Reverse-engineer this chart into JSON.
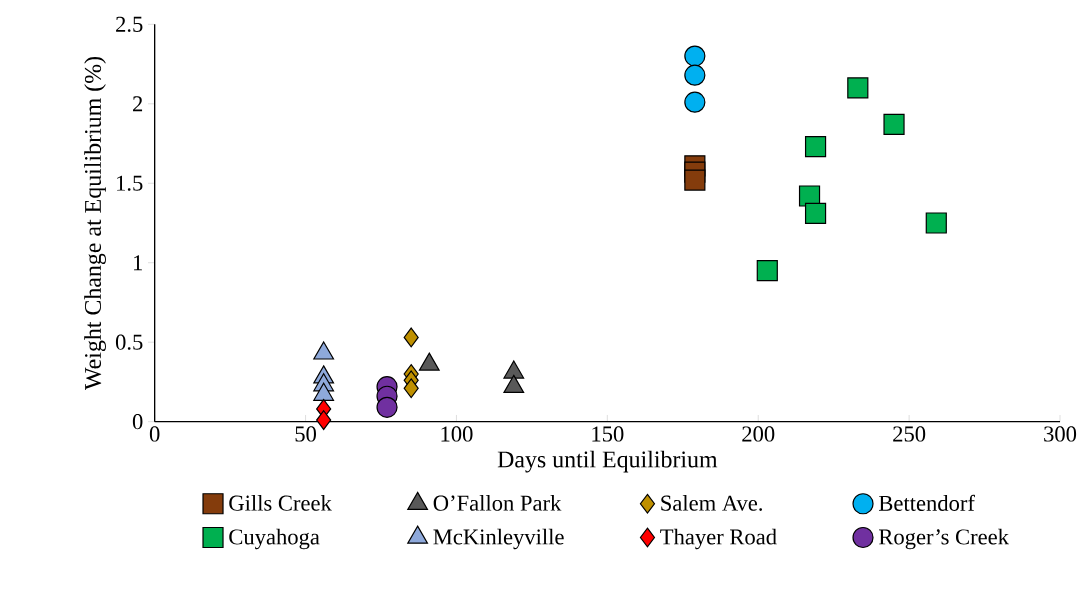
{
  "chart_data": {
    "type": "scatter",
    "xlabel": "Days until Equilibrium",
    "ylabel": "Weight Change at Equilibrium (%)",
    "xlim": [
      0,
      300
    ],
    "xticks": [
      0,
      50,
      100,
      150,
      200,
      250,
      300
    ],
    "ylim": [
      0,
      2.5
    ],
    "yticks": [
      0,
      0.5,
      1,
      1.5,
      2,
      2.5
    ],
    "grid": false,
    "legend": "bottom",
    "series": [
      {
        "name": "Gills Creek",
        "color": "#843c0c",
        "marker": "square",
        "x": [
          179,
          179,
          179
        ],
        "values": [
          1.61,
          1.57,
          1.52
        ]
      },
      {
        "name": "O’Fallon Park",
        "color": "#595959",
        "marker": "triangle",
        "x": [
          91,
          119,
          119
        ],
        "values": [
          0.36,
          0.31,
          0.22
        ]
      },
      {
        "name": "Salem Ave.",
        "color": "#bf9000",
        "marker": "diamond",
        "x": [
          85,
          85,
          85,
          85
        ],
        "values": [
          0.53,
          0.3,
          0.26,
          0.21
        ]
      },
      {
        "name": "Bettendorf",
        "color": "#00b0f0",
        "marker": "circle",
        "x": [
          179,
          179,
          179
        ],
        "values": [
          2.3,
          2.18,
          2.01
        ]
      },
      {
        "name": "Cuyahoga",
        "color": "#00b050",
        "marker": "square",
        "x": [
          233,
          245,
          219,
          217,
          219,
          259,
          203
        ],
        "values": [
          2.1,
          1.87,
          1.73,
          1.42,
          1.31,
          1.25,
          0.95
        ]
      },
      {
        "name": "McKinleyville",
        "color": "#8ea9db",
        "marker": "triangle",
        "x": [
          56,
          56,
          56,
          56
        ],
        "values": [
          0.43,
          0.28,
          0.23,
          0.17
        ]
      },
      {
        "name": "Thayer Road",
        "color": "#ff0000",
        "marker": "diamond",
        "x": [
          56,
          56
        ],
        "values": [
          0.08,
          0.01
        ]
      },
      {
        "name": "Roger’s Creek",
        "color": "#7030a0",
        "marker": "circle",
        "x": [
          77,
          77,
          77
        ],
        "values": [
          0.22,
          0.16,
          0.09
        ]
      }
    ]
  }
}
